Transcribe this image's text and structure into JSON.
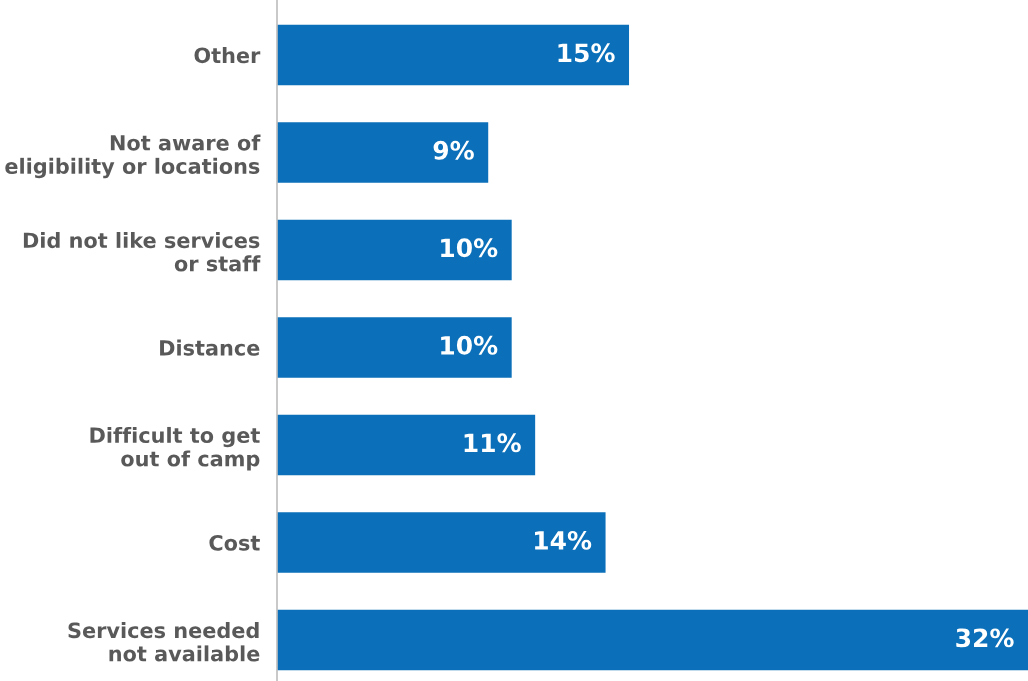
{
  "chart_data": {
    "type": "bar",
    "orientation": "horizontal",
    "categories": [
      "Other",
      "Not aware of\neligibility or locations",
      "Did not like services\nor staff",
      "Distance",
      "Difficult to get\nout of camp",
      "Cost",
      "Services needed\nnot available"
    ],
    "values": [
      15,
      9,
      10,
      10,
      11,
      14,
      32
    ],
    "value_labels": [
      "15%",
      "9%",
      "10%",
      "10%",
      "11%",
      "14%",
      "32%"
    ],
    "color": "#0b70b9",
    "grid": false,
    "legend": false
  }
}
